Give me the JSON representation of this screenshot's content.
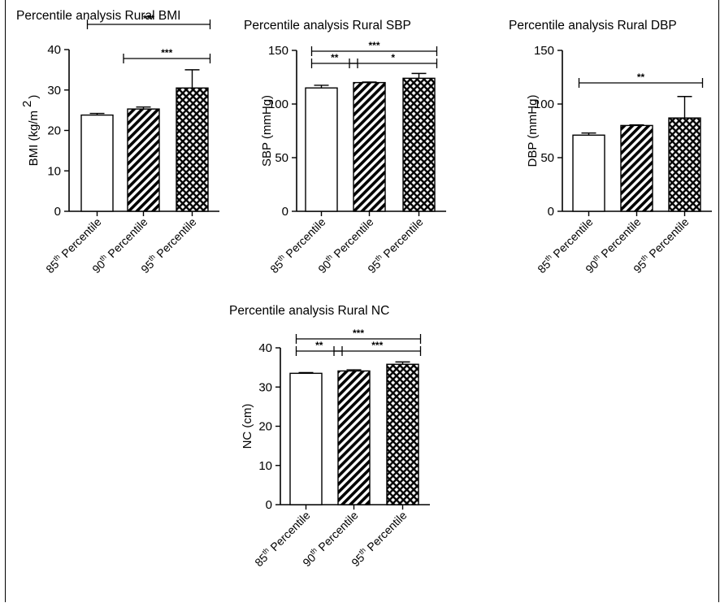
{
  "chart_data": [
    {
      "type": "bar",
      "title": "Percentile analysis Rural BMI",
      "ylabel_main": "BMI (kg/m",
      "ylabel_sup": "2",
      "ylabel_close": ")",
      "ylim": [
        0,
        40
      ],
      "yticks": [
        "0",
        "10",
        "20",
        "30",
        "40"
      ],
      "categories": [
        {
          "num": "85",
          "sup": "th",
          "text": " Percentile"
        },
        {
          "num": "90",
          "sup": "th",
          "text": " Percentile"
        },
        {
          "num": "95",
          "sup": "th",
          "text": " Percentile"
        }
      ],
      "values": [
        23.8,
        25.3,
        30.5
      ],
      "errors": [
        0.4,
        0.5,
        4.5
      ],
      "significance": [
        {
          "from": 0,
          "to": 2,
          "label": "***"
        },
        {
          "from": 1,
          "to": 2,
          "label": "***"
        }
      ]
    },
    {
      "type": "bar",
      "title": "Percentile analysis Rural SBP",
      "ylabel_main": "SBP (mmHg)",
      "ylim": [
        0,
        150
      ],
      "yticks": [
        "0",
        "50",
        "100",
        "150"
      ],
      "categories": [
        {
          "num": "85",
          "sup": "th",
          "text": " Percentile"
        },
        {
          "num": "90",
          "sup": "th",
          "text": " Percentile"
        },
        {
          "num": "95",
          "sup": "th",
          "text": " Percentile"
        }
      ],
      "values": [
        115,
        120,
        124
      ],
      "errors": [
        2.5,
        0.5,
        4.5
      ],
      "significance": [
        {
          "from": 0,
          "to": 2,
          "label": "***"
        },
        {
          "from": 0,
          "to": 1,
          "label": "**"
        },
        {
          "from": 1,
          "to": 2,
          "label": "*"
        }
      ]
    },
    {
      "type": "bar",
      "title": "Percentile analysis Rural DBP",
      "ylabel_main": "DBP (mmHg)",
      "ylim": [
        0,
        150
      ],
      "yticks": [
        "0",
        "50",
        "100",
        "150"
      ],
      "categories": [
        {
          "num": "85",
          "sup": "th",
          "text": " Percentile"
        },
        {
          "num": "90",
          "sup": "th",
          "text": " Percentile"
        },
        {
          "num": "95",
          "sup": "th",
          "text": " Percentile"
        }
      ],
      "values": [
        71,
        80,
        87
      ],
      "errors": [
        2,
        0.5,
        20
      ],
      "significance": [
        {
          "from": 0,
          "to": 2,
          "label": "**"
        }
      ]
    },
    {
      "type": "bar",
      "title": "Percentile analysis Rural NC",
      "ylabel_main": "NC (cm)",
      "ylim": [
        0,
        40
      ],
      "yticks": [
        "0",
        "10",
        "20",
        "30",
        "40"
      ],
      "categories": [
        {
          "num": "85",
          "sup": "th",
          "text": " Percentile"
        },
        {
          "num": "90",
          "sup": "th",
          "text": " Percentile"
        },
        {
          "num": "95",
          "sup": "th",
          "text": " Percentile"
        }
      ],
      "values": [
        33.5,
        34.1,
        35.8
      ],
      "errors": [
        0.2,
        0.3,
        0.6
      ],
      "significance": [
        {
          "from": 0,
          "to": 2,
          "label": "***"
        },
        {
          "from": 0,
          "to": 1,
          "label": "**"
        },
        {
          "from": 1,
          "to": 2,
          "label": "***"
        }
      ]
    }
  ]
}
